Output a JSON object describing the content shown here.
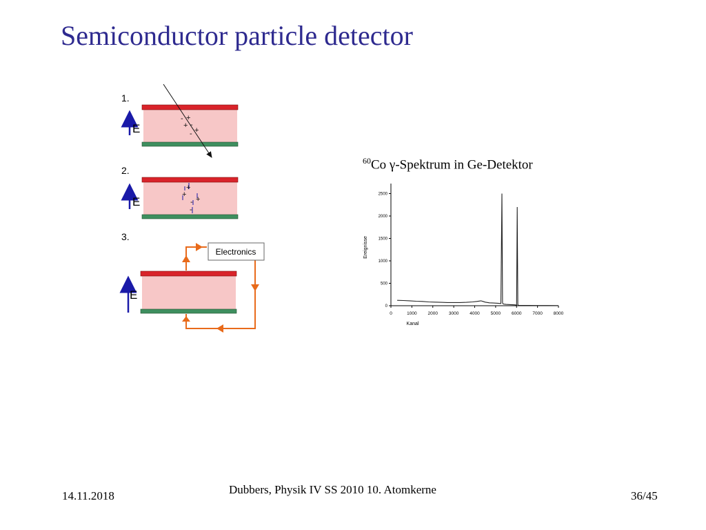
{
  "slide": {
    "title": "Semiconductor particle detector",
    "footer_date": "14.11.2018",
    "footer_center": "Dubbers, Physik IV SS 2010 10. Atomkerne",
    "footer_page": "36/45"
  },
  "diagram": {
    "step1_label": "1.",
    "step2_label": "2.",
    "step3_label": "3.",
    "field_label": "E",
    "electronics_label": "Electronics",
    "colors": {
      "top_electrode": "#d9232a",
      "bottom_electrode": "#3f8f5f",
      "bulk": "#f7c7c7",
      "field_arrow": "#1a1aa8",
      "circuit": "#e86a1a"
    }
  },
  "spectrum": {
    "caption_sup": "60",
    "caption_text": "Co γ-Spektrum in Ge-Detektor",
    "chart_data": {
      "type": "line",
      "title": "",
      "xlabel": "Kanal",
      "ylabel": "Ereignisse",
      "xlim": [
        0,
        8000
      ],
      "ylim": [
        0,
        2600
      ],
      "xticks": [
        "0",
        "1000",
        "2000",
        "3000",
        "4000",
        "5000",
        "6000",
        "7000",
        "8000"
      ],
      "yticks": [
        "0",
        "500",
        "1000",
        "1500",
        "2000",
        "2500"
      ],
      "series": [
        {
          "x": [
            300,
            600,
            900,
            1200,
            1500,
            1800,
            2100,
            2400,
            2700,
            3000,
            3300,
            3600,
            3900,
            4100,
            4300,
            4400,
            4500,
            4700,
            4900,
            5100,
            5250,
            5300,
            5330,
            5360,
            5400,
            5500,
            5700,
            5900,
            6000,
            6030,
            6060,
            6100,
            6300,
            6600,
            7000,
            7500,
            8000
          ],
          "y": [
            120,
            115,
            110,
            100,
            95,
            85,
            80,
            75,
            70,
            70,
            70,
            75,
            85,
            95,
            110,
            95,
            80,
            65,
            60,
            55,
            50,
            2500,
            60,
            40,
            35,
            30,
            25,
            20,
            15,
            2200,
            20,
            10,
            8,
            6,
            5,
            4,
            3
          ]
        }
      ]
    }
  }
}
